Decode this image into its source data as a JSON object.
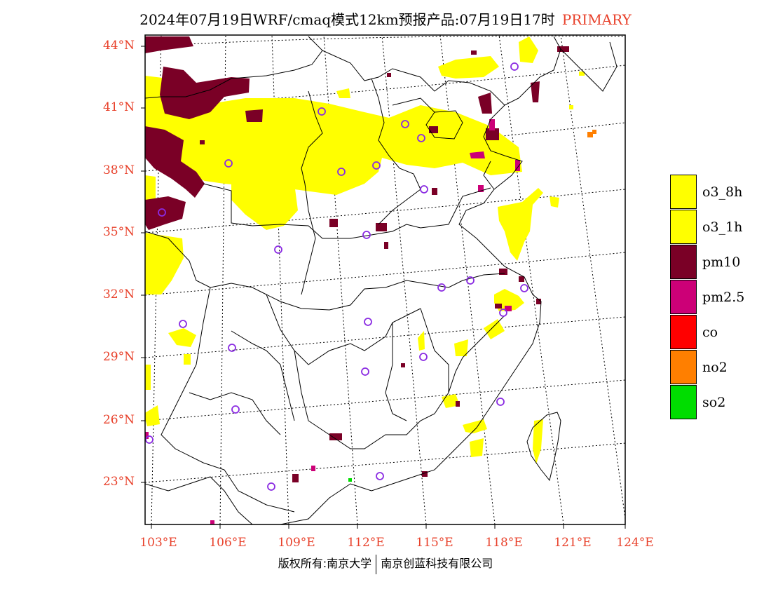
{
  "title": {
    "main": "2024年07月19日WRF/cmaq模式12km预报产品:07月19日17时",
    "tag": "PRIMARY"
  },
  "colors": {
    "label": "#e8402a",
    "o3_8h": "#ffff00",
    "o3_1h": "#ffff00",
    "pm10": "#7a0026",
    "pm2_5": "#cc0077",
    "co": "#ff0000",
    "no2": "#ff7f00",
    "so2": "#00dd00",
    "station": "#8a2be2"
  },
  "axes": {
    "lat_labels": [
      "44°N",
      "41°N",
      "38°N",
      "35°N",
      "32°N",
      "29°N",
      "26°N",
      "23°N"
    ],
    "lon_labels": [
      "103°E",
      "106°E",
      "109°E",
      "112°E",
      "115°E",
      "118°E",
      "121°E",
      "124°E"
    ]
  },
  "legend": [
    {
      "key": "o3_8h",
      "label": "o3_8h",
      "color": "#ffff00"
    },
    {
      "key": "o3_1h",
      "label": "o3_1h",
      "color": "#ffff00"
    },
    {
      "key": "pm10",
      "label": "pm10",
      "color": "#7a0026"
    },
    {
      "key": "pm2_5",
      "label": "pm2.5",
      "color": "#cc0077"
    },
    {
      "key": "co",
      "label": "co",
      "color": "#ff0000"
    },
    {
      "key": "no2",
      "label": "no2",
      "color": "#ff7f00"
    },
    {
      "key": "so2",
      "label": "so2",
      "color": "#00dd00"
    }
  ],
  "footer": {
    "left": "版权所有:南京大学",
    "right": "南京创蓝科技有限公司"
  }
}
